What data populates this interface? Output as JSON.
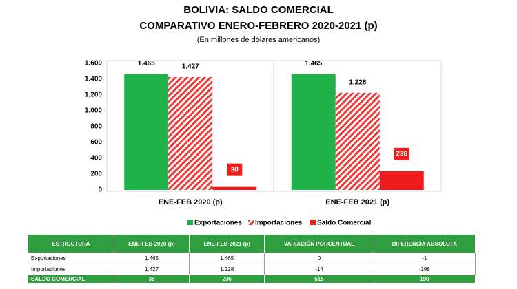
{
  "chart_data": {
    "type": "bar",
    "title": "BOLIVIA: SALDO COMERCIAL",
    "subtitle": "COMPARATIVO ENERO-FEBRERO 2020-2021 (p)",
    "units": "(En millones de dólares americanos)",
    "categories": [
      "ENE-FEB 2020 (p)",
      "ENE-FEB 2021 (p)"
    ],
    "series": [
      {
        "name": "Exportaciones",
        "color": "#22b24c",
        "pattern": "solid",
        "label_style": "plain",
        "values": [
          1465,
          1465
        ],
        "value_labels": [
          "1.465",
          "1.465"
        ]
      },
      {
        "name": "Importaciones",
        "color": "#ee3a3a",
        "pattern": "hatch",
        "label_style": "plain",
        "values": [
          1427,
          1228
        ],
        "value_labels": [
          "1.427",
          "1.228"
        ]
      },
      {
        "name": "Saldo Comercial",
        "color": "#ee1c1c",
        "pattern": "solid",
        "label_style": "boxed",
        "values": [
          38,
          236
        ]
      }
    ],
    "ylim": [
      0,
      1600
    ],
    "yticks": [
      0,
      200,
      400,
      600,
      800,
      {
        "value": 1000,
        "label": "1.000"
      },
      {
        "value": 1200,
        "label": "1.200"
      },
      {
        "value": 1400,
        "label": "1.400"
      },
      {
        "value": 1600,
        "label": "1.600"
      }
    ],
    "grid": false,
    "legend": "bottom"
  },
  "table": {
    "header": [
      "ESTRUCTURA",
      "ENE-FEB 2020 (p)",
      "ENE-FEB 2021 (p)",
      "VARIACIÓN PORCENTUAL",
      "DIFERENCIA ABSOLUTA"
    ],
    "rows": [
      [
        "Exportaciones",
        "1.465",
        "1.465",
        "0",
        "-1"
      ],
      [
        "Importaciones",
        "1.427",
        "1.228",
        "-14",
        "-198"
      ]
    ],
    "total": [
      "SALDO COMERCIAL",
      "38",
      "236",
      "515",
      "198"
    ]
  }
}
